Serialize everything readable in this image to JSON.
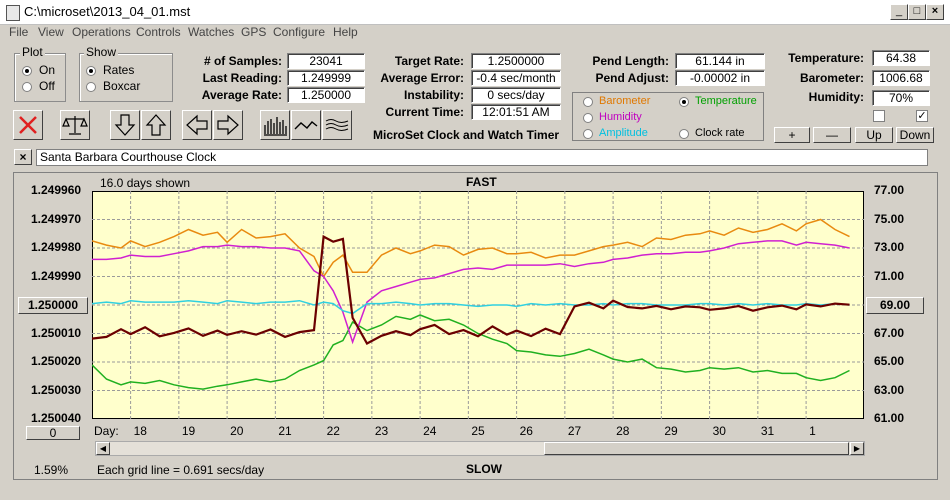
{
  "window": {
    "title": "C:\\microset\\2013_04_01.mst"
  },
  "menu": [
    "File",
    "View",
    "Operations",
    "Controls",
    "Watches",
    "GPS",
    "Configure",
    "Help"
  ],
  "plot_group": {
    "label": "Plot",
    "options": [
      {
        "label": "On",
        "selected": true
      },
      {
        "label": "Off",
        "selected": false
      }
    ]
  },
  "show_group": {
    "label": "Show",
    "options": [
      {
        "label": "Rates",
        "selected": true
      },
      {
        "label": "Boxcar",
        "selected": false
      }
    ]
  },
  "stats": {
    "samples_label": "# of Samples:",
    "samples": "23041",
    "last_label": "Last Reading:",
    "last": "1.249999",
    "avg_label": "Average Rate:",
    "avg": "1.250000",
    "target_label": "Target Rate:",
    "target": "1.2500000",
    "avgerr_label": "Average Error:",
    "avgerr": "-0.4 sec/month",
    "instab_label": "Instability:",
    "instab": "0 secs/day",
    "time_label": "Current Time:",
    "time": "12:01:51 AM",
    "pendlen_label": "Pend Length:",
    "pendlen": "61.144 in",
    "pendadj_label": "Pend Adjust:",
    "pendadj": "-0.00002 in",
    "temp_label": "Temperature:",
    "temp": "64.38",
    "baro_label": "Barometer:",
    "baro": "1006.68",
    "hum_label": "Humidity:",
    "hum": "70%"
  },
  "app_caption": "MicroSet Clock and Watch Timer",
  "sensor_select": [
    {
      "label": "Barometer",
      "color": "#e07800",
      "selected": false
    },
    {
      "label": "Temperature",
      "color": "#00a000",
      "selected": true
    },
    {
      "label": "Humidity",
      "color": "#c000c0",
      "selected": false
    },
    {
      "label": "Amplitude",
      "color": "#00c0e0",
      "selected": false
    },
    {
      "label": "Clock rate",
      "color": "#000000",
      "selected": false
    }
  ],
  "scale_buttons": {
    "plus": "+",
    "minus": "—",
    "up": "Up",
    "down": "Down"
  },
  "checkboxes": [
    {
      "checked": false
    },
    {
      "checked": true
    }
  ],
  "clock_name": "Santa Barbara Courthouse Clock",
  "close_label": "×",
  "chart_header": {
    "days_shown": "16.0 days shown",
    "top": "FAST",
    "bottom": "SLOW",
    "grid_note": "Each grid line = 0.691 secs/day",
    "percent": "1.59%",
    "day_prefix": "Day:",
    "left_value": "1.250000",
    "right_value": "69.00",
    "bottom_left_value": "0"
  },
  "colors": {
    "plot_bg": "#ffffcc",
    "rate": "#6b0000",
    "temperature": "#20b020",
    "barometer": "#e88a10",
    "humidity": "#d020d0",
    "amplitude": "#30d0e0"
  },
  "chart_data": {
    "type": "line",
    "xlabel": "Day:",
    "x_tick_labels": [
      "18",
      "19",
      "20",
      "21",
      "22",
      "23",
      "24",
      "25",
      "26",
      "27",
      "28",
      "29",
      "30",
      "31",
      "1"
    ],
    "x": [
      17.2,
      17.5,
      17.8,
      18,
      18.3,
      18.6,
      18.9,
      19.2,
      19.5,
      19.8,
      20,
      20.3,
      20.6,
      20.9,
      21.2,
      21.5,
      21.8,
      22,
      22.2,
      22.4,
      22.6,
      22.9,
      23.2,
      23.5,
      23.8,
      24,
      24.3,
      24.6,
      24.9,
      25.2,
      25.5,
      25.8,
      26,
      26.3,
      26.6,
      26.9,
      27.2,
      27.5,
      27.8,
      28,
      28.3,
      28.6,
      28.9,
      29.2,
      29.5,
      29.8,
      30,
      30.3,
      30.6,
      30.9,
      31.2,
      31.5,
      31.8,
      32,
      32.3,
      32.6,
      32.9
    ],
    "y_left_ticks": [
      "1.249960",
      "1.249970",
      "1.249980",
      "1.249990",
      "1.250000",
      "1.250010",
      "1.250020",
      "1.250030",
      "1.250040"
    ],
    "y_right_ticks": [
      "77.00",
      "75.00",
      "73.00",
      "71.00",
      "69.00",
      "67.00",
      "65.00",
      "63.00",
      "61.00"
    ],
    "ylim_left": [
      1.24996,
      1.25004
    ],
    "ylim_right": [
      61,
      77
    ],
    "series": [
      {
        "name": "Temperature",
        "axis": "right",
        "color": "#20b020",
        "values": [
          64.8,
          63.8,
          63.4,
          63.6,
          63.5,
          63.7,
          63.4,
          63.2,
          63.1,
          63.3,
          63.4,
          63.6,
          63.8,
          63.6,
          63.8,
          64.4,
          64.8,
          65.1,
          66.2,
          66.5,
          67.8,
          67.2,
          67.6,
          68.2,
          68.0,
          68.3,
          67.9,
          68.0,
          67.6,
          67.0,
          66.6,
          66.3,
          65.8,
          65.7,
          65.5,
          65.4,
          65.6,
          65.9,
          65.5,
          65.2,
          65.0,
          65.2,
          64.6,
          64.5,
          64.3,
          64.4,
          64.6,
          64.5,
          64.6,
          64.3,
          64.4,
          64.2,
          64.2,
          63.9,
          63.7,
          63.9,
          64.4
        ]
      },
      {
        "name": "Barometer",
        "axis": "right",
        "color": "#e88a10",
        "values": [
          73.5,
          73.2,
          73.0,
          73.5,
          73.1,
          73.4,
          73.8,
          74.3,
          73.9,
          74.1,
          73.4,
          74.3,
          73.7,
          73.8,
          74.0,
          73.0,
          72.4,
          71.0,
          72.0,
          72.5,
          71.3,
          71.3,
          72.5,
          73.0,
          72.6,
          72.8,
          73.2,
          73.1,
          72.5,
          72.9,
          73.0,
          72.6,
          72.6,
          72.7,
          72.3,
          72.5,
          72.5,
          72.8,
          73.1,
          73.2,
          73.4,
          73.1,
          73.7,
          73.6,
          73.9,
          74.0,
          74.2,
          73.9,
          74.4,
          74.1,
          74.3,
          74.7,
          74.2,
          74.7,
          75.0,
          74.3,
          73.8
        ]
      },
      {
        "name": "Humidity",
        "axis": "right",
        "color": "#d020d0",
        "values": [
          72.2,
          72.2,
          72.3,
          72.5,
          72.4,
          72.4,
          72.6,
          72.8,
          73.1,
          73.1,
          73.2,
          73.1,
          73.1,
          73.0,
          73.0,
          72.8,
          71.4,
          71.0,
          70.0,
          68.5,
          66.4,
          69.2,
          70.0,
          70.3,
          70.6,
          70.8,
          70.9,
          71.2,
          71.5,
          71.6,
          71.5,
          71.8,
          71.8,
          71.8,
          71.8,
          71.9,
          71.7,
          71.9,
          72.0,
          72.2,
          72.3,
          72.5,
          72.6,
          72.6,
          72.7,
          72.7,
          72.8,
          73.0,
          73.3,
          73.4,
          73.5,
          73.5,
          73.2,
          73.4,
          73.3,
          73.2,
          73.0
        ]
      },
      {
        "name": "Amplitude",
        "axis": "right",
        "color": "#30d0e0",
        "values": [
          69.1,
          69.2,
          69.1,
          69.3,
          69.2,
          69.2,
          69.2,
          69.3,
          69.2,
          69.1,
          69.3,
          69.2,
          69.1,
          69.2,
          69.2,
          69.3,
          69.0,
          69.2,
          69.1,
          68.6,
          68.4,
          69.1,
          69.1,
          69.2,
          69.1,
          69.0,
          69.1,
          69.1,
          69.0,
          68.9,
          69.0,
          69.0,
          68.9,
          69.1,
          69.0,
          69.1,
          69.0,
          69.0,
          69.1,
          69.0,
          69.1,
          69.1,
          69.0,
          69.0,
          69.0,
          69.1,
          69.1,
          69.0,
          69.1,
          69.0,
          69.1,
          69.0,
          69.0,
          69.1,
          69.0,
          69.1,
          69.0
        ]
      },
      {
        "name": "Clock rate",
        "axis": "left",
        "color": "#6b0000",
        "values": [
          1.2500118,
          1.2500112,
          1.2500085,
          1.2500102,
          1.2500078,
          1.250011,
          1.2500098,
          1.2500082,
          1.2500108,
          1.250009,
          1.2500105,
          1.2500092,
          1.2500104,
          1.2500086,
          1.2500112,
          1.2500095,
          1.2500088,
          1.249976,
          1.2499778,
          1.2499768,
          1.2500045,
          1.2500135,
          1.2500108,
          1.2500092,
          1.2500106,
          1.2500085,
          1.250007,
          1.2500102,
          1.2500088,
          1.250011,
          1.2500075,
          1.2500104,
          1.250009,
          1.2500109,
          1.2500083,
          1.2500102,
          1.2500005,
          1.2499992,
          1.2500012,
          1.2499985,
          1.2500007,
          1.2500012,
          1.2500003,
          1.2500015,
          1.2500005,
          1.2500008,
          1.2500017,
          1.2500012,
          1.2500004,
          1.250002,
          1.2500008,
          1.2500002,
          1.2500015,
          1.2499998,
          1.2500005,
          1.2499995,
          1.2499999
        ]
      }
    ]
  }
}
